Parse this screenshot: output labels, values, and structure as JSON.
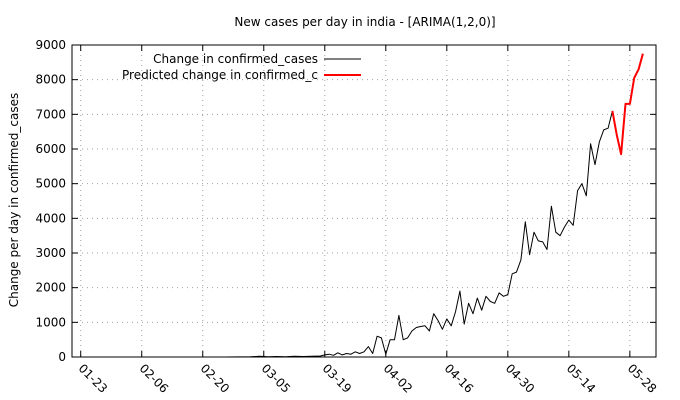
{
  "chart_data": {
    "type": "line",
    "title": "New cases per day in india -  [ARIMA(1,2,0)]",
    "ylabel": "Change per day in confirmed_cases",
    "xlabel": "",
    "ylim": [
      0,
      9000
    ],
    "yticks": [
      "0",
      "1000",
      "2000",
      "3000",
      "4000",
      "5000",
      "6000",
      "7000",
      "8000",
      "9000"
    ],
    "xlim": [
      "01-21",
      "06-03"
    ],
    "xticks": [
      {
        "label": "01-23",
        "date": "01-23"
      },
      {
        "label": "02-06",
        "date": "02-06"
      },
      {
        "label": "02-20",
        "date": "02-20"
      },
      {
        "label": "03-05",
        "date": "03-05"
      },
      {
        "label": "03-19",
        "date": "03-19"
      },
      {
        "label": "04-02",
        "date": "04-02"
      },
      {
        "label": "04-16",
        "date": "04-16"
      },
      {
        "label": "04-30",
        "date": "04-30"
      },
      {
        "label": "05-14",
        "date": "05-14"
      },
      {
        "label": "05-28",
        "date": "05-28"
      }
    ],
    "grid": true,
    "legend_position": "top-left",
    "series": [
      {
        "name": "Change in confirmed_cases",
        "color": "#000000",
        "x": [
          "02-25",
          "03-02",
          "03-04",
          "03-06",
          "03-08",
          "03-10",
          "03-12",
          "03-14",
          "03-16",
          "03-18",
          "03-19",
          "03-20",
          "03-21",
          "03-22",
          "03-23",
          "03-24",
          "03-25",
          "03-26",
          "03-27",
          "03-28",
          "03-29",
          "03-30",
          "03-31",
          "04-01",
          "04-02",
          "04-03",
          "04-04",
          "04-05",
          "04-06",
          "04-07",
          "04-08",
          "04-09",
          "04-10",
          "04-11",
          "04-12",
          "04-13",
          "04-14",
          "04-15",
          "04-16",
          "04-17",
          "04-18",
          "04-19",
          "04-20",
          "04-21",
          "04-22",
          "04-23",
          "04-24",
          "04-25",
          "04-26",
          "04-27",
          "04-28",
          "04-29",
          "04-30",
          "05-01",
          "05-02",
          "05-03",
          "05-04",
          "05-05",
          "05-06",
          "05-07",
          "05-08",
          "05-09",
          "05-10",
          "05-11",
          "05-12",
          "05-13",
          "05-14",
          "05-15",
          "05-16",
          "05-17",
          "05-18",
          "05-19",
          "05-20",
          "05-21",
          "05-22",
          "05-23",
          "05-24"
        ],
        "y": [
          0,
          5,
          20,
          8,
          15,
          10,
          20,
          15,
          20,
          30,
          60,
          80,
          50,
          120,
          60,
          100,
          80,
          150,
          100,
          150,
          300,
          100,
          600,
          550,
          80,
          500,
          500,
          1200,
          500,
          550,
          750,
          850,
          880,
          900,
          750,
          1250,
          1050,
          800,
          1100,
          900,
          1300,
          1900,
          950,
          1550,
          1250,
          1700,
          1350,
          1750,
          1600,
          1550,
          1850,
          1750,
          1800,
          2400,
          2450,
          2800,
          3900,
          2950,
          3600,
          3350,
          3320,
          3100,
          4350,
          3600,
          3500,
          3750,
          3950,
          3800,
          4800,
          5000,
          4650,
          6150,
          5550,
          6200,
          6550,
          6600,
          7100
        ]
      },
      {
        "name": "Predicted change in confirmed_c",
        "color": "#ff0000",
        "x": [
          "05-24",
          "05-25",
          "05-26",
          "05-27",
          "05-28",
          "05-29",
          "05-30",
          "05-31"
        ],
        "y": [
          7100,
          6400,
          5850,
          7300,
          7300,
          8050,
          8300,
          8750
        ]
      }
    ]
  }
}
